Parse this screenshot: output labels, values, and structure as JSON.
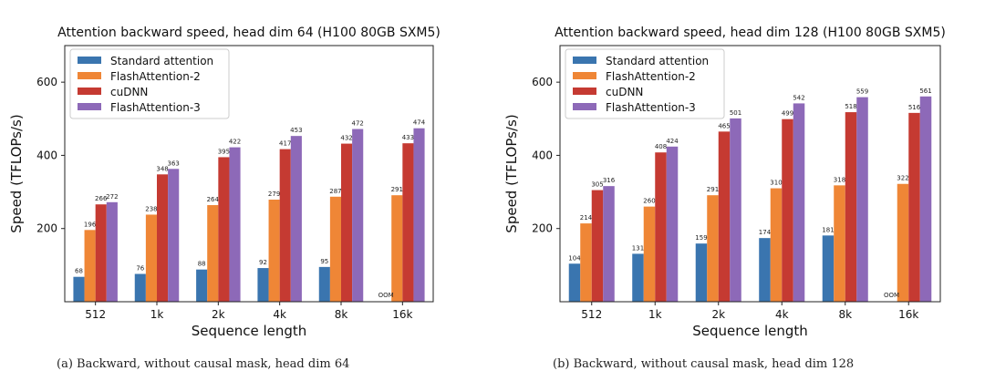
{
  "colors": {
    "Standard attention": "#3a75af",
    "FlashAttention-2": "#ef8636",
    "cuDNN": "#c53a32",
    "FlashAttention-3": "#8d69b8"
  },
  "chart_data": [
    {
      "type": "bar",
      "title": "Attention backward speed, head dim 64 (H100 80GB SXM5)",
      "xlabel": "Sequence length",
      "ylabel": "Speed (TFLOPs/s)",
      "ylim": [
        0,
        700
      ],
      "yticks": [
        200,
        400,
        600
      ],
      "grid": false,
      "legend": "top-left",
      "categories": [
        "512",
        "1k",
        "2k",
        "4k",
        "8k",
        "16k"
      ],
      "series": [
        {
          "name": "Standard attention",
          "values": [
            68,
            76,
            88,
            92,
            95,
            null
          ]
        },
        {
          "name": "FlashAttention-2",
          "values": [
            196,
            238,
            264,
            279,
            287,
            291
          ]
        },
        {
          "name": "cuDNN",
          "values": [
            266,
            348,
            395,
            417,
            432,
            433
          ]
        },
        {
          "name": "FlashAttention-3",
          "values": [
            272,
            363,
            422,
            453,
            472,
            474
          ]
        }
      ],
      "annotations": [
        {
          "category": "16k",
          "series": "Standard attention",
          "text": "OOM"
        }
      ],
      "caption": "(a) Backward, without causal mask, head dim 64"
    },
    {
      "type": "bar",
      "title": "Attention backward speed, head dim 128 (H100 80GB SXM5)",
      "xlabel": "Sequence length",
      "ylabel": "Speed (TFLOPs/s)",
      "ylim": [
        0,
        700
      ],
      "yticks": [
        200,
        400,
        600
      ],
      "grid": false,
      "legend": "top-left",
      "categories": [
        "512",
        "1k",
        "2k",
        "4k",
        "8k",
        "16k"
      ],
      "series": [
        {
          "name": "Standard attention",
          "values": [
            104,
            131,
            159,
            174,
            181,
            null
          ]
        },
        {
          "name": "FlashAttention-2",
          "values": [
            214,
            260,
            291,
            310,
            318,
            322
          ]
        },
        {
          "name": "cuDNN",
          "values": [
            305,
            408,
            465,
            499,
            518,
            516
          ]
        },
        {
          "name": "FlashAttention-3",
          "values": [
            316,
            424,
            501,
            542,
            559,
            561
          ]
        }
      ],
      "annotations": [
        {
          "category": "16k",
          "series": "Standard attention",
          "text": "OOM"
        }
      ],
      "caption": "(b) Backward, without causal mask, head dim 128"
    }
  ]
}
